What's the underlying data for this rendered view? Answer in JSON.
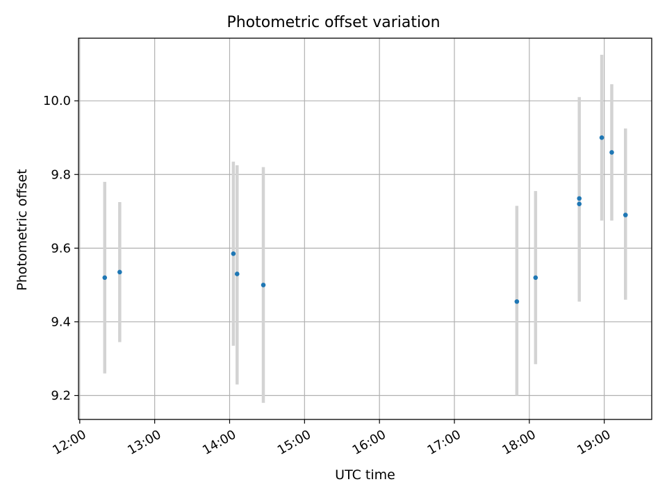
{
  "chart_data": {
    "type": "scatter",
    "title": "Photometric offset variation",
    "xlabel": "UTC time",
    "ylabel": "Photometric offset",
    "x_ticks": [
      "12:00",
      "13:00",
      "14:00",
      "15:00",
      "16:00",
      "17:00",
      "18:00",
      "19:00"
    ],
    "y_ticks": [
      "9.2",
      "9.4",
      "9.6",
      "9.8",
      "10.0"
    ],
    "xlim": [
      "11:59",
      "19:38"
    ],
    "ylim": [
      9.135,
      10.17
    ],
    "grid": true,
    "points": [
      {
        "time": "12:20",
        "y": 9.52,
        "ylow": 9.26,
        "yhigh": 9.78
      },
      {
        "time": "12:32",
        "y": 9.535,
        "ylow": 9.345,
        "yhigh": 9.725
      },
      {
        "time": "14:03",
        "y": 9.585,
        "ylow": 9.335,
        "yhigh": 9.835
      },
      {
        "time": "14:06",
        "y": 9.53,
        "ylow": 9.23,
        "yhigh": 9.825
      },
      {
        "time": "14:27",
        "y": 9.5,
        "ylow": 9.18,
        "yhigh": 9.82
      },
      {
        "time": "17:50",
        "y": 9.455,
        "ylow": 9.2,
        "yhigh": 9.715
      },
      {
        "time": "18:05",
        "y": 9.52,
        "ylow": 9.285,
        "yhigh": 9.755
      },
      {
        "time": "18:40",
        "y": 9.735,
        "ylow": 9.455,
        "yhigh": 10.01
      },
      {
        "time": "18:40",
        "y": 9.72,
        "ylow": 9.455,
        "yhigh": 10.01
      },
      {
        "time": "18:58",
        "y": 9.9,
        "ylow": 9.675,
        "yhigh": 10.125
      },
      {
        "time": "19:06",
        "y": 9.86,
        "ylow": 9.675,
        "yhigh": 10.045
      },
      {
        "time": "19:17",
        "y": 9.69,
        "ylow": 9.46,
        "yhigh": 9.925
      }
    ],
    "colors": {
      "marker": "#1f77b4",
      "errorbar": "#d3d3d3",
      "grid": "#b0b0b0"
    }
  }
}
